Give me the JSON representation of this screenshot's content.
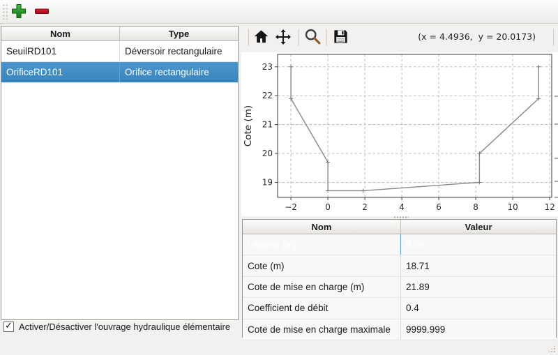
{
  "toolbar": {
    "add_tooltip": "Ajouter",
    "remove_tooltip": "Supprimer"
  },
  "left_panel": {
    "table": {
      "columns": [
        "Nom",
        "Type"
      ],
      "rows": [
        [
          "SeuilRD101",
          "Déversoir rectangulaire"
        ],
        [
          "OrificeRD101",
          "Orifice rectangulaire"
        ]
      ],
      "selected_index": 1
    },
    "checkbox": {
      "label": "Activer/Désactiver l'ouvrage hydraulique élémentaire",
      "checked": true,
      "checkmark": "✓"
    }
  },
  "right_panel": {
    "mpl_toolbar": {
      "coords": "(x = 4.4936,  y = 20.0173)"
    },
    "properties_table": {
      "columns": [
        "Nom",
        "Valeur"
      ],
      "rows": [
        [
          "Largeur (m)",
          "9.66"
        ],
        [
          "Cote (m)",
          "18.71"
        ],
        [
          "Cote de mise en charge (m)",
          "21.89"
        ],
        [
          "Coefficient de débit",
          "0.4"
        ],
        [
          "Cote de mise en charge maximale",
          "9999.999"
        ]
      ],
      "selected_index": 0
    }
  },
  "chart_data": {
    "type": "line",
    "title": "",
    "xlabel": "",
    "ylabel": "Cote (m)",
    "xlim": [
      -2.72,
      12.11
    ],
    "ylim": [
      18.48,
      23.43
    ],
    "xticks": [
      -2,
      0,
      2,
      4,
      6,
      8,
      10,
      12
    ],
    "yticks": [
      19,
      20,
      21,
      22,
      23
    ],
    "grid": true,
    "legend": null,
    "line_color": "#8a8a8a",
    "marker": "+",
    "points": [
      [
        -2,
        23
      ],
      [
        -2,
        21.9
      ],
      [
        0,
        19.7
      ],
      [
        0,
        18.71
      ],
      [
        1.9,
        18.71
      ],
      [
        8.2,
        19.0
      ],
      [
        8.2,
        20.0
      ],
      [
        11.4,
        21.9
      ],
      [
        11.4,
        23
      ]
    ]
  },
  "colors": {
    "selection_blue": "#3e8ac5",
    "add_green": "#2aa12a",
    "remove_red": "#c60f24",
    "window_bg": "#f2f1f0"
  }
}
